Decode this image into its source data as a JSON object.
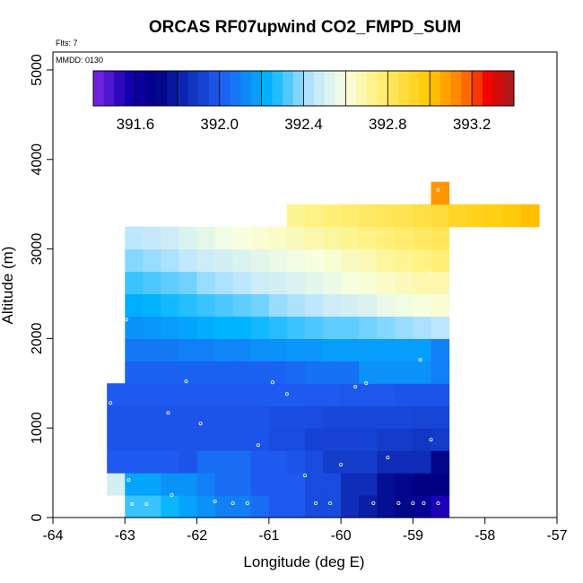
{
  "chart_data": {
    "type": "heatmap",
    "title": "ORCAS RF07upwind CO2_FMPD_SUM",
    "subtitle_flights": "Flts: 7",
    "subtitle_mmdd": "MMDD: 0130",
    "xlabel": "Longitude (deg E)",
    "ylabel": "Altitude (m)",
    "xlim": [
      -64,
      -57
    ],
    "ylim": [
      0,
      5200
    ],
    "xticks": [
      -64,
      -63,
      -62,
      -61,
      -60,
      -59,
      -58,
      -57
    ],
    "yticks": [
      0,
      1000,
      2000,
      3000,
      4000,
      5000
    ],
    "xtick_labels": [
      "-64",
      "-63",
      "-62",
      "-61",
      "-60",
      "-59",
      "-58",
      "-57"
    ],
    "ytick_labels": [
      "0",
      "1000",
      "2000",
      "3000",
      "4000",
      "5000"
    ],
    "grid": false,
    "colorbar": {
      "range": [
        391.4,
        393.4
      ],
      "ticks": [
        391.6,
        392.0,
        392.4,
        392.8,
        393.2
      ],
      "tick_labels": [
        "391.6",
        "392.0",
        "392.4",
        "392.8",
        "393.2"
      ]
    },
    "cell_width_deg": 0.25,
    "cell_height_m": 250,
    "grid_lon_start": -63.25,
    "grid_alt_start": 0,
    "rows": [
      {
        "alt_m": 0,
        "start_lon": -63.0,
        "values": [
          392.3,
          392.3,
          392.25,
          392.2,
          392.15,
          392.1,
          392.1,
          392.05,
          392.0,
          392.0,
          391.95,
          391.95,
          391.85,
          391.8,
          391.75,
          391.72,
          391.65,
          391.55
        ]
      },
      {
        "alt_m": 250,
        "start_lon": -63.25,
        "values": [
          392.5,
          392.2,
          392.2,
          392.15,
          392.15,
          392.1,
          392.05,
          392.05,
          392.0,
          392.0,
          392.0,
          391.95,
          391.95,
          391.85,
          391.85,
          391.75,
          391.72,
          391.7,
          391.7
        ]
      },
      {
        "alt_m": 500,
        "start_lon": -63.25,
        "values": [
          392.0,
          392.0,
          392.0,
          392.0,
          391.98,
          392.05,
          392.05,
          392.05,
          392.0,
          392.0,
          391.98,
          391.95,
          391.9,
          391.9,
          391.9,
          391.85,
          391.85,
          391.85,
          391.72
        ]
      },
      {
        "alt_m": 750,
        "start_lon": -63.25,
        "values": [
          391.98,
          391.98,
          391.98,
          391.98,
          391.98,
          391.98,
          391.98,
          391.98,
          391.98,
          391.95,
          391.95,
          391.92,
          391.92,
          391.92,
          391.92,
          391.9,
          391.9,
          391.88,
          391.9
        ]
      },
      {
        "alt_m": 1000,
        "start_lon": -63.25,
        "values": [
          391.98,
          391.98,
          391.98,
          391.98,
          391.98,
          391.98,
          391.98,
          391.98,
          391.98,
          391.96,
          391.96,
          391.95,
          391.94,
          391.94,
          391.94,
          391.94,
          391.94,
          391.93,
          391.93
        ]
      },
      {
        "alt_m": 1250,
        "start_lon": -63.25,
        "values": [
          392.0,
          392.0,
          392.0,
          392.0,
          392.0,
          392.0,
          392.0,
          392.0,
          392.0,
          392.0,
          392.0,
          392.0,
          392.0,
          391.99,
          391.99,
          391.99,
          391.98,
          391.98,
          391.98
        ]
      },
      {
        "alt_m": 1500,
        "start_lon": -63.0,
        "values": [
          392.02,
          392.02,
          392.02,
          392.02,
          392.02,
          392.02,
          392.02,
          392.02,
          392.02,
          392.04,
          392.06,
          392.06,
          392.06,
          392.15,
          392.15,
          392.15,
          392.15,
          392.1
        ]
      },
      {
        "alt_m": 1750,
        "start_lon": -63.0,
        "values": [
          392.08,
          392.08,
          392.08,
          392.1,
          392.1,
          392.12,
          392.12,
          392.14,
          392.15,
          392.16,
          392.16,
          392.18,
          392.18,
          392.18,
          392.18,
          392.18,
          392.18,
          392.1
        ]
      },
      {
        "alt_m": 2000,
        "start_lon": -63.0,
        "values": [
          392.15,
          392.16,
          392.18,
          392.2,
          392.22,
          392.24,
          392.24,
          392.26,
          392.28,
          392.3,
          392.32,
          392.34,
          392.34,
          392.36,
          392.38,
          392.4,
          392.42,
          392.44
        ]
      },
      {
        "alt_m": 2250,
        "start_lon": -63.0,
        "values": [
          392.22,
          392.24,
          392.26,
          392.28,
          392.3,
          392.32,
          392.34,
          392.36,
          392.4,
          392.42,
          392.44,
          392.48,
          392.5,
          392.52,
          392.56,
          392.58,
          392.6,
          392.62
        ]
      },
      {
        "alt_m": 2500,
        "start_lon": -63.0,
        "values": [
          392.3,
          392.32,
          392.34,
          392.36,
          392.4,
          392.42,
          392.44,
          392.48,
          392.5,
          392.52,
          392.54,
          392.56,
          392.6,
          392.62,
          392.64,
          392.66,
          392.68,
          392.68
        ]
      },
      {
        "alt_m": 2750,
        "start_lon": -63.0,
        "values": [
          392.38,
          392.4,
          392.42,
          392.45,
          392.48,
          392.5,
          392.52,
          392.54,
          392.56,
          392.58,
          392.6,
          392.62,
          392.65,
          392.67,
          392.7,
          392.72,
          392.74,
          392.76
        ]
      },
      {
        "alt_m": 3000,
        "start_lon": -63.0,
        "values": [
          392.44,
          392.46,
          392.48,
          392.52,
          392.55,
          392.58,
          392.6,
          392.62,
          392.64,
          392.66,
          392.68,
          392.7,
          392.72,
          392.74,
          392.76,
          392.78,
          392.8,
          392.82
        ]
      },
      {
        "alt_m": 3250,
        "start_lon": -60.75,
        "values": [
          392.72,
          392.74,
          392.76,
          392.78,
          392.8,
          392.82,
          392.84,
          392.86,
          392.88,
          392.92,
          392.94,
          392.96,
          392.98,
          393.02
        ]
      },
      {
        "alt_m": 3500,
        "start_lon": -58.75,
        "values": [
          393.1
        ]
      }
    ],
    "sample_points": [
      [
        -62.9,
        150
      ],
      [
        -62.7,
        150
      ],
      [
        -62.35,
        250
      ],
      [
        -61.75,
        180
      ],
      [
        -61.5,
        160
      ],
      [
        -61.3,
        160
      ],
      [
        -60.35,
        160
      ],
      [
        -60.15,
        160
      ],
      [
        -59.55,
        160
      ],
      [
        -59.2,
        160
      ],
      [
        -59.0,
        160
      ],
      [
        -58.85,
        160
      ],
      [
        -58.65,
        160
      ],
      [
        -62.95,
        420
      ],
      [
        -60.5,
        470
      ],
      [
        -60.0,
        590
      ],
      [
        -59.35,
        670
      ],
      [
        -58.75,
        870
      ],
      [
        -61.15,
        810
      ],
      [
        -61.95,
        1050
      ],
      [
        -62.4,
        1170
      ],
      [
        -63.2,
        1280
      ],
      [
        -62.15,
        1520
      ],
      [
        -60.95,
        1510
      ],
      [
        -60.75,
        1380
      ],
      [
        -59.8,
        1460
      ],
      [
        -59.65,
        1500
      ],
      [
        -58.9,
        1760
      ],
      [
        -62.98,
        2210
      ],
      [
        -58.75,
        2730
      ],
      [
        -58.65,
        3660
      ]
    ]
  }
}
